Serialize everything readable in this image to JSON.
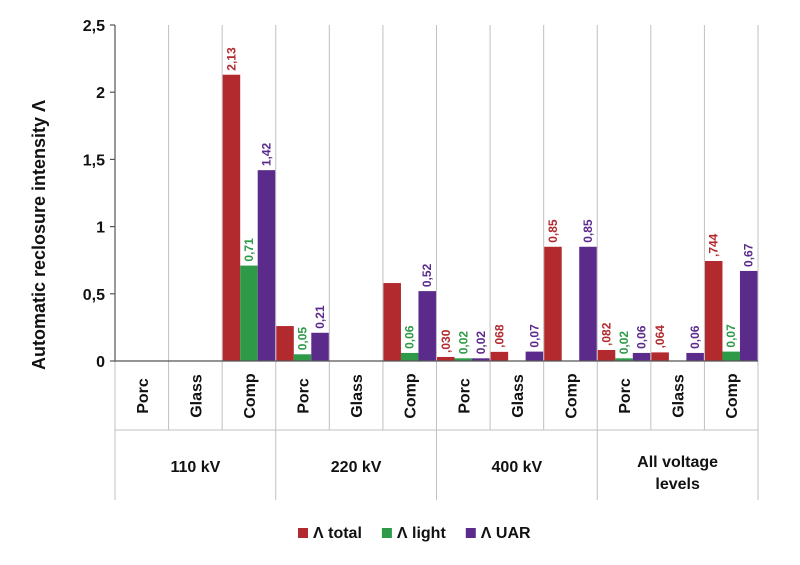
{
  "chart_data": {
    "type": "bar",
    "ylabel": "Automatic reclosure intensity Λ",
    "ylim": [
      0,
      2.5
    ],
    "yticks": [
      "0",
      "0,5",
      "1",
      "1,5",
      "2",
      "2,5"
    ],
    "groups": [
      {
        "name": "110 kV",
        "categories": [
          "Porc",
          "Glass",
          "Comp"
        ]
      },
      {
        "name": "220 kV",
        "categories": [
          "Porc",
          "Glass",
          "Comp"
        ]
      },
      {
        "name": "400 kV",
        "categories": [
          "Porc",
          "Glass",
          "Comp"
        ]
      },
      {
        "name": "All voltage levels",
        "categories": [
          "Porc",
          "Glass",
          "Comp"
        ]
      }
    ],
    "series": [
      {
        "name": "Λ total",
        "color": "#b22a2e",
        "values": [
          null,
          null,
          2.13,
          0.26,
          null,
          0.58,
          0.03,
          0.068,
          0.85,
          0.082,
          0.064,
          0.744
        ],
        "labels": [
          null,
          null,
          "2,13",
          null,
          null,
          null,
          ",030",
          ",068",
          "0,85",
          ",082",
          ",064",
          ",744"
        ]
      },
      {
        "name": "Λ light",
        "color": "#2e9a48",
        "values": [
          null,
          null,
          0.71,
          0.05,
          null,
          0.06,
          0.02,
          null,
          null,
          0.02,
          null,
          0.07
        ],
        "labels": [
          null,
          null,
          "0,71",
          "0,05",
          null,
          "0,06",
          "0,02",
          null,
          null,
          "0,02",
          null,
          "0,07"
        ]
      },
      {
        "name": "Λ UAR",
        "color": "#5b2b8c",
        "values": [
          null,
          null,
          1.42,
          0.21,
          null,
          0.52,
          0.02,
          0.07,
          0.85,
          0.06,
          0.06,
          0.67
        ],
        "labels": [
          null,
          null,
          "1,42",
          "0,21",
          null,
          "0,52",
          "0,02",
          "0,07",
          "0,85",
          "0,06",
          "0,06",
          "0,67"
        ]
      }
    ],
    "legend": {
      "position": "bottom"
    },
    "grid": {
      "vertical": true,
      "horizontal": false
    }
  }
}
